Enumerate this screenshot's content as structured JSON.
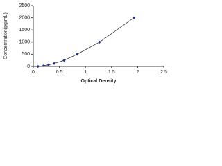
{
  "chart_data": {
    "type": "scatter",
    "x_label": "Optical Density",
    "y_label": "Concentration(pg/mL)",
    "x": [
      0.09,
      0.2,
      0.29,
      0.4,
      0.59,
      0.84,
      1.27,
      1.93
    ],
    "values": [
      0,
      31.2,
      62.5,
      125,
      250,
      500,
      1000,
      2000
    ],
    "color": "#1f2f8f",
    "line_color": "#333333",
    "connect": true,
    "xlim": [
      0,
      2.5
    ],
    "xticks": [
      0,
      0.5,
      1,
      1.5,
      2,
      2.5
    ],
    "ylim": [
      0,
      2500
    ],
    "yticks": [
      0,
      500,
      1000,
      1500,
      2000,
      2500
    ]
  }
}
